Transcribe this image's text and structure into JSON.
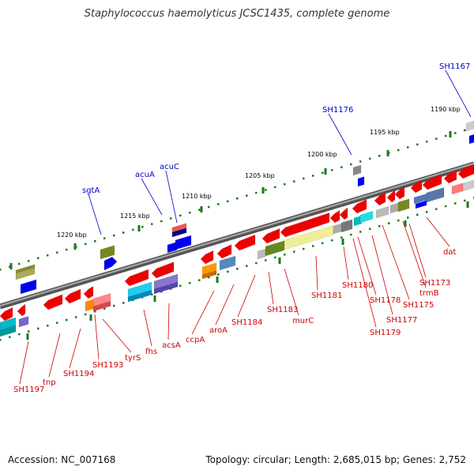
{
  "title": "Staphylococcus haemolyticus JCSC1435, complete genome",
  "footer": {
    "accession": "Accession: NC_007168",
    "topology": "Topology: circular; Length: 2,685,015 bp; Genes: 2,752"
  },
  "colors": {
    "backbone": "#777777",
    "tick": "#1a7a1a",
    "label_red": "#cc0000",
    "label_blue": "#0000cc"
  },
  "scale_labels": [
    "1220 kbp",
    "1215 kbp",
    "1210 kbp",
    "1205 kbp",
    "1200 kbp",
    "1195 kbp",
    "1190 kbp"
  ],
  "genes": [
    {
      "name": "SH1197",
      "color": "label_red"
    },
    {
      "name": "tnp",
      "color": "label_red"
    },
    {
      "name": "SH1194",
      "color": "label_red"
    },
    {
      "name": "SH1193",
      "color": "label_red"
    },
    {
      "name": "tyrS",
      "color": "label_red"
    },
    {
      "name": "fhs",
      "color": "label_red"
    },
    {
      "name": "acsA",
      "color": "label_red"
    },
    {
      "name": "ccpA",
      "color": "label_red"
    },
    {
      "name": "aroA",
      "color": "label_red"
    },
    {
      "name": "SH1184",
      "color": "label_red"
    },
    {
      "name": "SH1183",
      "color": "label_red"
    },
    {
      "name": "murC",
      "color": "label_red"
    },
    {
      "name": "SH1181",
      "color": "label_red"
    },
    {
      "name": "SH1180",
      "color": "label_red"
    },
    {
      "name": "SH1179",
      "color": "label_red"
    },
    {
      "name": "SH1178",
      "color": "label_red"
    },
    {
      "name": "SH1177",
      "color": "label_red"
    },
    {
      "name": "SH1175",
      "color": "label_red"
    },
    {
      "name": "trmB",
      "color": "label_red"
    },
    {
      "name": "SH1173",
      "color": "label_red"
    },
    {
      "name": "dat",
      "color": "label_red"
    },
    {
      "name": "sgtA",
      "color": "label_blue"
    },
    {
      "name": "acuA",
      "color": "label_blue"
    },
    {
      "name": "acuC",
      "color": "label_blue"
    },
    {
      "name": "SH1176",
      "color": "label_blue"
    },
    {
      "name": "SH1167",
      "color": "label_blue"
    }
  ]
}
